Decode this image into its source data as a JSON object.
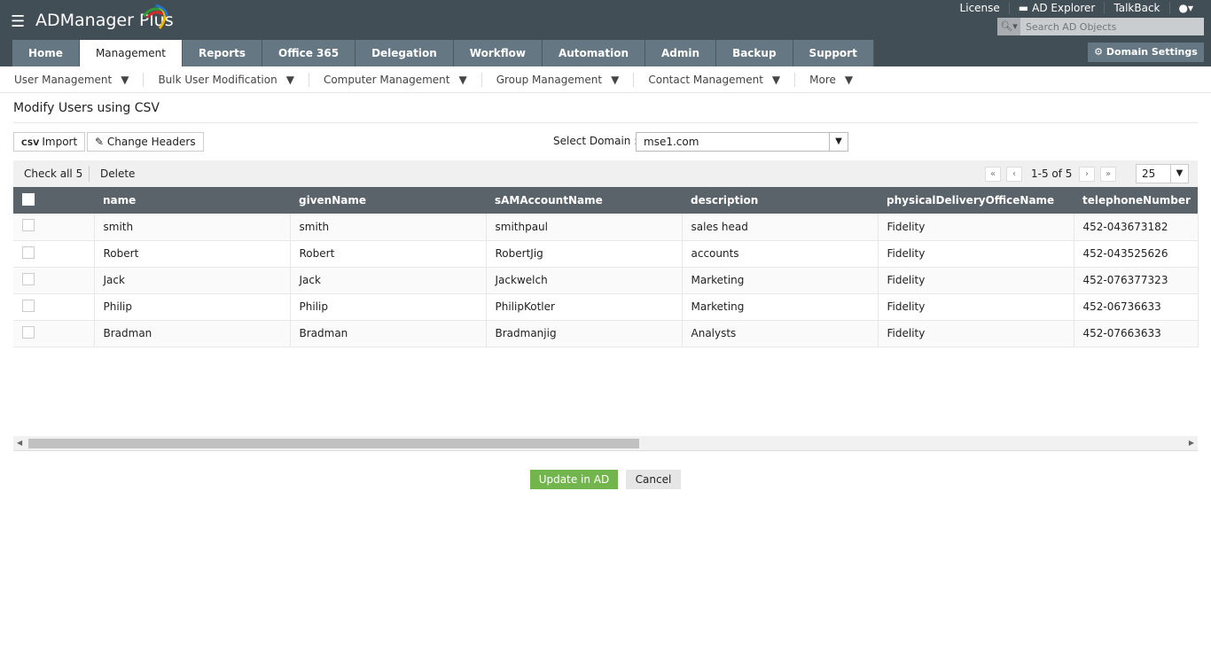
{
  "app": {
    "title": "ADManager Plus"
  },
  "tabs": [
    "Home",
    "Management",
    "Reports",
    "Office 365",
    "Delegation",
    "Workflow",
    "Automation",
    "Admin",
    "Backup",
    "Support"
  ],
  "top_links": {
    "license": "License",
    "ad_explorer": "AD Explorer",
    "talkback": "TalkBack"
  },
  "search": {
    "placeholder": "Search AD Objects"
  },
  "domain_settings": "Domain Settings",
  "subnav": [
    "User Management",
    "Bulk User Modification",
    "Computer Management",
    "Group Management",
    "Contact Management",
    "More"
  ],
  "page_title": "Modify Users using CSV",
  "toolbar": {
    "import": "Import",
    "change_headers": "Change Headers",
    "select_domain_label": "Select Domain :",
    "domain": "mse1.com"
  },
  "grid_bar": {
    "check_all": "Check all 5",
    "delete": "Delete",
    "page_info": "1-5 of 5",
    "per_page": "25"
  },
  "table": {
    "columns": [
      "name",
      "givenName",
      "sAMAccountName",
      "description",
      "physicalDeliveryOfficeName",
      "telephoneNumber"
    ],
    "rows": [
      [
        "smith",
        "smith",
        "smithpaul",
        "sales head",
        "Fidelity",
        "452-043673182"
      ],
      [
        "Robert",
        "Robert",
        "RobertJig",
        "accounts",
        "Fidelity",
        "452-043525626"
      ],
      [
        "Jack",
        "Jack",
        "Jackwelch",
        "Marketing",
        "Fidelity",
        "452-076377323"
      ],
      [
        "Philip",
        "Philip",
        "PhilipKotler",
        "Marketing",
        "Fidelity",
        "452-06736633"
      ],
      [
        "Bradman",
        "Bradman",
        "Bradmanjig",
        "Analysts",
        "Fidelity",
        "452-07663633"
      ]
    ]
  },
  "actions": {
    "update": "Update in AD",
    "cancel": "Cancel"
  },
  "colors": {
    "header": "#424e56",
    "tab": "#647782",
    "table_header": "#596369",
    "update": "#71b54c"
  }
}
